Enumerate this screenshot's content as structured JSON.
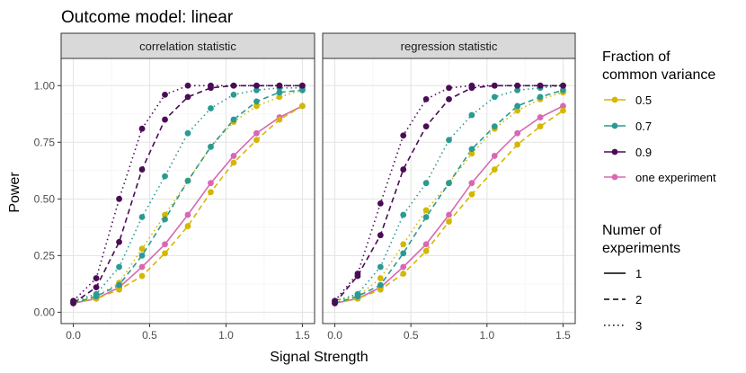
{
  "chart_data": {
    "type": "line",
    "title": "Outcome model: linear",
    "xlabel": "Signal Strength",
    "ylabel": "Power",
    "xlim": [
      -0.08,
      1.58
    ],
    "ylim": [
      -0.05,
      1.12
    ],
    "x_ticks": [
      0.0,
      0.5,
      1.0,
      1.5
    ],
    "x_tick_labels": [
      "0.0",
      "0.5",
      "1.0",
      "1.5"
    ],
    "y_ticks": [
      0.0,
      0.25,
      0.5,
      0.75,
      1.0
    ],
    "y_tick_labels": [
      "0.00",
      "0.25",
      "0.50",
      "0.75",
      "1.00"
    ],
    "x": [
      0,
      0.15,
      0.3,
      0.45,
      0.6,
      0.75,
      0.9,
      1.05,
      1.2,
      1.35,
      1.5
    ],
    "colors": {
      "0.5": "#d4b700",
      "0.7": "#2a9a92",
      "0.9": "#4b0b56",
      "one experiment": "#d868b2"
    },
    "panels": [
      {
        "strip": "correlation statistic",
        "series": [
          {
            "fraction": "one experiment",
            "experiments": 1,
            "values": [
              0.04,
              0.06,
              0.11,
              0.2,
              0.3,
              0.43,
              0.57,
              0.69,
              0.79,
              0.86,
              0.91
            ]
          },
          {
            "fraction": "0.5",
            "experiments": 2,
            "values": [
              0.04,
              0.06,
              0.1,
              0.16,
              0.26,
              0.38,
              0.53,
              0.66,
              0.76,
              0.85,
              0.91
            ]
          },
          {
            "fraction": "0.5",
            "experiments": 3,
            "values": [
              0.05,
              0.07,
              0.13,
              0.28,
              0.43,
              0.58,
              0.73,
              0.84,
              0.91,
              0.95,
              0.98
            ]
          },
          {
            "fraction": "0.7",
            "experiments": 2,
            "values": [
              0.04,
              0.07,
              0.12,
              0.25,
              0.41,
              0.58,
              0.73,
              0.85,
              0.93,
              0.97,
              0.98
            ]
          },
          {
            "fraction": "0.7",
            "experiments": 3,
            "values": [
              0.05,
              0.08,
              0.2,
              0.42,
              0.6,
              0.79,
              0.9,
              0.96,
              0.98,
              0.99,
              0.99
            ]
          },
          {
            "fraction": "0.9",
            "experiments": 2,
            "values": [
              0.04,
              0.11,
              0.31,
              0.63,
              0.85,
              0.95,
              0.99,
              1.0,
              1.0,
              1.0,
              1.0
            ]
          },
          {
            "fraction": "0.9",
            "experiments": 3,
            "values": [
              0.05,
              0.15,
              0.5,
              0.81,
              0.96,
              1.0,
              1.0,
              1.0,
              1.0,
              1.0,
              1.0
            ]
          }
        ]
      },
      {
        "strip": "regression statistic",
        "series": [
          {
            "fraction": "one experiment",
            "experiments": 1,
            "values": [
              0.04,
              0.06,
              0.11,
              0.2,
              0.3,
              0.43,
              0.57,
              0.69,
              0.79,
              0.86,
              0.91
            ]
          },
          {
            "fraction": "0.5",
            "experiments": 2,
            "values": [
              0.04,
              0.06,
              0.1,
              0.17,
              0.27,
              0.4,
              0.52,
              0.63,
              0.74,
              0.82,
              0.89
            ]
          },
          {
            "fraction": "0.5",
            "experiments": 3,
            "values": [
              0.05,
              0.07,
              0.15,
              0.3,
              0.45,
              0.57,
              0.7,
              0.81,
              0.89,
              0.94,
              0.97
            ]
          },
          {
            "fraction": "0.7",
            "experiments": 2,
            "values": [
              0.04,
              0.07,
              0.12,
              0.26,
              0.42,
              0.57,
              0.72,
              0.82,
              0.91,
              0.95,
              0.98
            ]
          },
          {
            "fraction": "0.7",
            "experiments": 3,
            "values": [
              0.05,
              0.08,
              0.2,
              0.43,
              0.57,
              0.76,
              0.87,
              0.95,
              0.98,
              0.99,
              1.0
            ]
          },
          {
            "fraction": "0.9",
            "experiments": 2,
            "values": [
              0.04,
              0.16,
              0.34,
              0.63,
              0.82,
              0.94,
              0.99,
              1.0,
              1.0,
              1.0,
              1.0
            ]
          },
          {
            "fraction": "0.9",
            "experiments": 3,
            "values": [
              0.05,
              0.17,
              0.48,
              0.78,
              0.94,
              0.99,
              1.0,
              1.0,
              1.0,
              1.0,
              1.0
            ]
          }
        ]
      }
    ],
    "legend": {
      "placement": "right",
      "color_title": "Fraction of common variance",
      "color_title_lines": [
        "Fraction of",
        "common variance"
      ],
      "color_entries": [
        "0.5",
        "0.7",
        "0.9",
        "one experiment"
      ],
      "linetype_title": "Numer of experiments",
      "linetype_title_lines": [
        "Numer of",
        "experiments"
      ],
      "linetype_entries": [
        "1",
        "2",
        "3"
      ],
      "linetype_styles": {
        "1": "solid",
        "2": "dashed",
        "3": "dotted"
      }
    },
    "grid": true
  }
}
